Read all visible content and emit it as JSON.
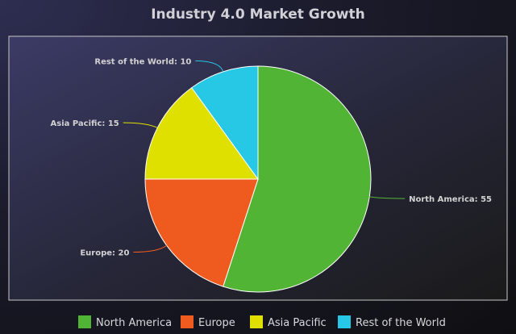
{
  "chart_data": {
    "type": "pie",
    "title": "Industry 4.0 Market Growth",
    "categories": [
      "North America",
      "Europe",
      "Asia Pacific",
      "Rest of the World"
    ],
    "values": [
      55,
      20,
      15,
      10
    ],
    "colors": [
      "#52b435",
      "#ef5a1e",
      "#e0e000",
      "#26c8e6"
    ],
    "data_labels": [
      "North America: 55",
      "Europe: 20",
      "Asia Pacific: 15",
      "Rest of the World: 10"
    ],
    "start_angle": "12 o'clock",
    "direction": "clockwise",
    "legend": {
      "position": "bottom",
      "items": [
        "North America",
        "Europe",
        "Asia Pacific",
        "Rest of the World"
      ]
    },
    "slice_border_color": "#ffffff",
    "plot_border_color": "#c8c8c8"
  }
}
